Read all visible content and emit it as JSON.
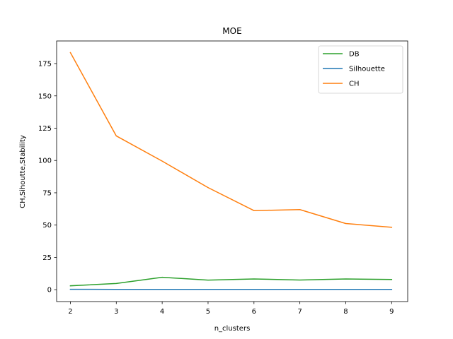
{
  "chart_data": {
    "type": "line",
    "title": "MOE",
    "xlabel": "n_clusters",
    "ylabel": "CH,Sihoutte,Stability",
    "x": [
      2,
      3,
      4,
      5,
      6,
      7,
      8,
      9
    ],
    "xlim": [
      1.7,
      9.35
    ],
    "ylim": [
      -9.2,
      192.5
    ],
    "xticks": [
      2,
      3,
      4,
      5,
      6,
      7,
      8,
      9
    ],
    "yticks": [
      0,
      25,
      50,
      75,
      100,
      125,
      150,
      175
    ],
    "grid": false,
    "legend_position": "top-right",
    "series": [
      {
        "name": "DB",
        "color": "#2ca02c",
        "values": [
          3.0,
          4.8,
          9.6,
          7.4,
          8.3,
          7.5,
          8.3,
          7.9
        ]
      },
      {
        "name": "Silhouette",
        "color": "#1f77b4",
        "values": [
          0.3,
          0.25,
          0.25,
          0.2,
          0.2,
          0.2,
          0.2,
          0.2
        ]
      },
      {
        "name": "CH",
        "color": "#ff7f0e",
        "values": [
          183.5,
          119.0,
          99.5,
          79.0,
          61.2,
          62.0,
          51.2,
          48.3
        ]
      }
    ]
  }
}
